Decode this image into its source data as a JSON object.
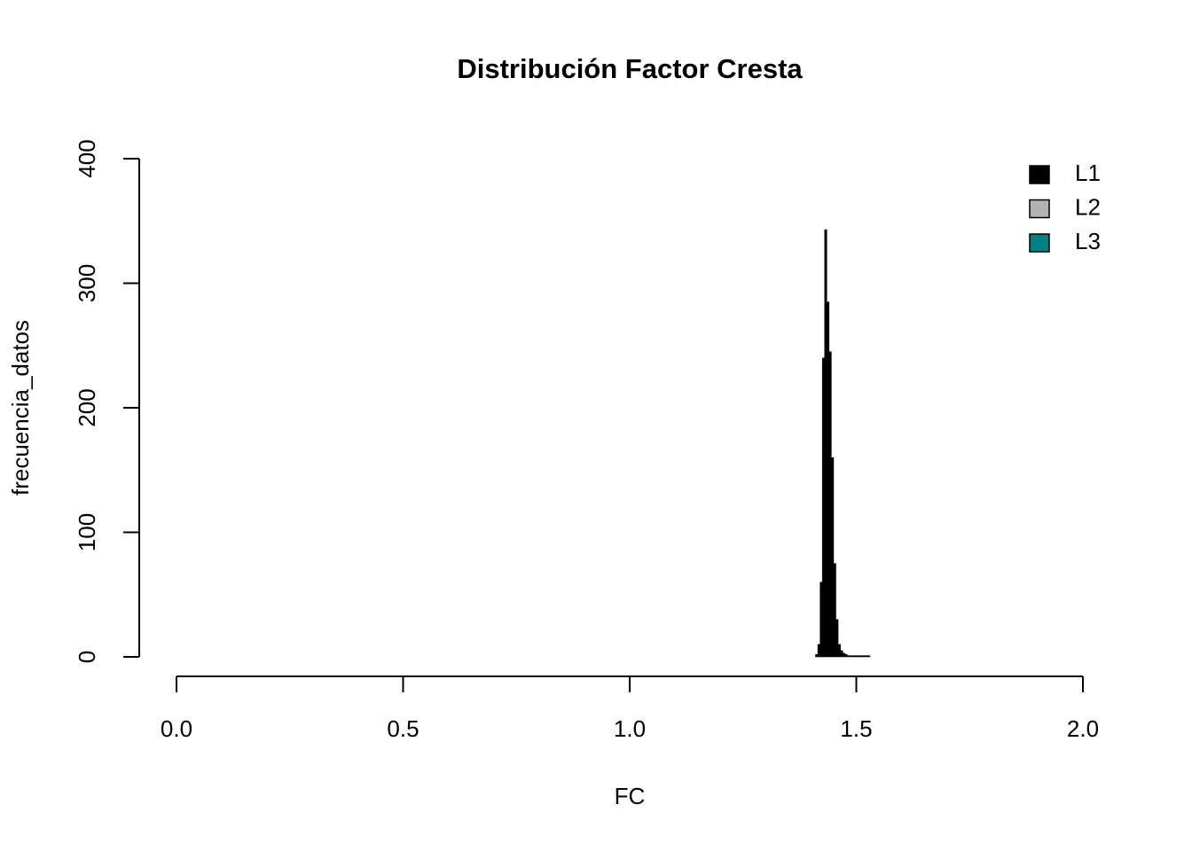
{
  "chart_data": {
    "type": "histogram",
    "title": "Distribución Factor Cresta",
    "x_label": "FC",
    "y_label": "frecuencia_datos",
    "bins": [
      1.41,
      1.415,
      1.42,
      1.425,
      1.43,
      1.435,
      1.44,
      1.445,
      1.45,
      1.455,
      1.46,
      1.465,
      1.47,
      1.475,
      1.48,
      1.485,
      1.49,
      1.495,
      1.5,
      1.505,
      1.51,
      1.515,
      1.52,
      1.525,
      1.53
    ],
    "series": [
      {
        "name": "L1",
        "color": "#000000",
        "values": [
          2,
          10,
          60,
          240,
          343,
          285,
          245,
          160,
          75,
          30,
          10,
          5,
          3,
          2,
          1,
          1,
          1,
          1,
          1,
          1,
          1,
          1,
          1,
          1
        ]
      }
    ],
    "legend": [
      {
        "name": "L1",
        "color": "#000000"
      },
      {
        "name": "L2",
        "color": "#b3b3b3"
      },
      {
        "name": "L3",
        "color": "#008080"
      }
    ],
    "legend_position": "top-right",
    "xlim": [
      0,
      2
    ],
    "xticks": [
      {
        "value": 0,
        "label": "0.0"
      },
      {
        "value": 0.5,
        "label": "0.5"
      },
      {
        "value": 1,
        "label": "1.0"
      },
      {
        "value": 1.5,
        "label": "1.5"
      },
      {
        "value": 2,
        "label": "2.0"
      }
    ],
    "ylim": [
      0,
      400
    ],
    "yticks": [
      0,
      100,
      200,
      300,
      400
    ]
  }
}
